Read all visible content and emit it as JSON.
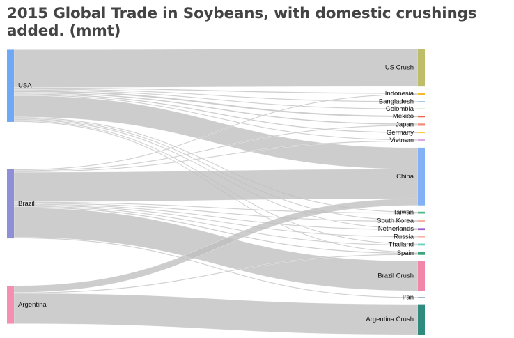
{
  "title": "2015 Global Trade in Soybeans, with domestic crushings added. (mmt)",
  "chart_data": {
    "type": "sankey",
    "sources": [
      {
        "name": "USA",
        "color": "#6fa8f5"
      },
      {
        "name": "Brazil",
        "color": "#8e8fd6"
      },
      {
        "name": "Argentina",
        "color": "#f48fb1"
      }
    ],
    "targets": [
      {
        "name": "US Crush",
        "color": "#bdbd6a"
      },
      {
        "name": "Indonesia",
        "color": "#f2b92c"
      },
      {
        "name": "Bangladesh",
        "color": "#8fc1e8"
      },
      {
        "name": "Colombia",
        "color": "#b8dfa3"
      },
      {
        "name": "Mexico",
        "color": "#e46b4f"
      },
      {
        "name": "Japan",
        "color": "#f08a79"
      },
      {
        "name": "Germany",
        "color": "#f6c94b"
      },
      {
        "name": "Vietnam",
        "color": "#d9a6e0"
      },
      {
        "name": "China",
        "color": "#82b1f5"
      },
      {
        "name": "Taiwan",
        "color": "#55b98a"
      },
      {
        "name": "South Korea",
        "color": "#f4b0a3"
      },
      {
        "name": "Netherlands",
        "color": "#9d5fd0"
      },
      {
        "name": "Russia",
        "color": "#f7a79b"
      },
      {
        "name": "Thailand",
        "color": "#6ad1c1"
      },
      {
        "name": "Spain",
        "color": "#3aa57a"
      },
      {
        "name": "Brazil Crush",
        "color": "#f186a8"
      },
      {
        "name": "Iran",
        "color": "#8da2c8"
      },
      {
        "name": "Argentina Crush",
        "color": "#2e8b7e"
      }
    ],
    "flows": [
      {
        "source": "USA",
        "target": "US Crush",
        "value": 51
      },
      {
        "source": "USA",
        "target": "Indonesia",
        "value": 1.5
      },
      {
        "source": "USA",
        "target": "Bangladesh",
        "value": 0.6
      },
      {
        "source": "USA",
        "target": "Colombia",
        "value": 0.4
      },
      {
        "source": "USA",
        "target": "Mexico",
        "value": 2.2
      },
      {
        "source": "USA",
        "target": "Japan",
        "value": 1.7
      },
      {
        "source": "USA",
        "target": "Germany",
        "value": 1.5
      },
      {
        "source": "USA",
        "target": "China",
        "value": 29
      },
      {
        "source": "USA",
        "target": "Taiwan",
        "value": 0.8
      },
      {
        "source": "USA",
        "target": "South Korea",
        "value": 0.5
      },
      {
        "source": "USA",
        "target": "Netherlands",
        "value": 0.5
      },
      {
        "source": "USA",
        "target": "Thailand",
        "value": 0.5
      },
      {
        "source": "USA",
        "target": "Spain",
        "value": 0.5
      },
      {
        "source": "USA",
        "target": "Vietnam",
        "value": 0.3
      },
      {
        "source": "Brazil",
        "target": "Vietnam",
        "value": 0.2
      },
      {
        "source": "Brazil",
        "target": "Indonesia",
        "value": 0.2
      },
      {
        "source": "Brazil",
        "target": "Japan",
        "value": 0.3
      },
      {
        "source": "Brazil",
        "target": "China",
        "value": 40
      },
      {
        "source": "Brazil",
        "target": "Taiwan",
        "value": 0.8
      },
      {
        "source": "Brazil",
        "target": "South Korea",
        "value": 0.4
      },
      {
        "source": "Brazil",
        "target": "Netherlands",
        "value": 1.2
      },
      {
        "source": "Brazil",
        "target": "Russia",
        "value": 0.8
      },
      {
        "source": "Brazil",
        "target": "Thailand",
        "value": 1.2
      },
      {
        "source": "Brazil",
        "target": "Spain",
        "value": 1.5
      },
      {
        "source": "Brazil",
        "target": "Brazil Crush",
        "value": 40
      },
      {
        "source": "Brazil",
        "target": "Iran",
        "value": 1
      },
      {
        "source": "Argentina",
        "target": "China",
        "value": 9
      },
      {
        "source": "Argentina",
        "target": "Spain",
        "value": 0.2
      },
      {
        "source": "Argentina",
        "target": "Argentina Crush",
        "value": 41
      }
    ]
  }
}
